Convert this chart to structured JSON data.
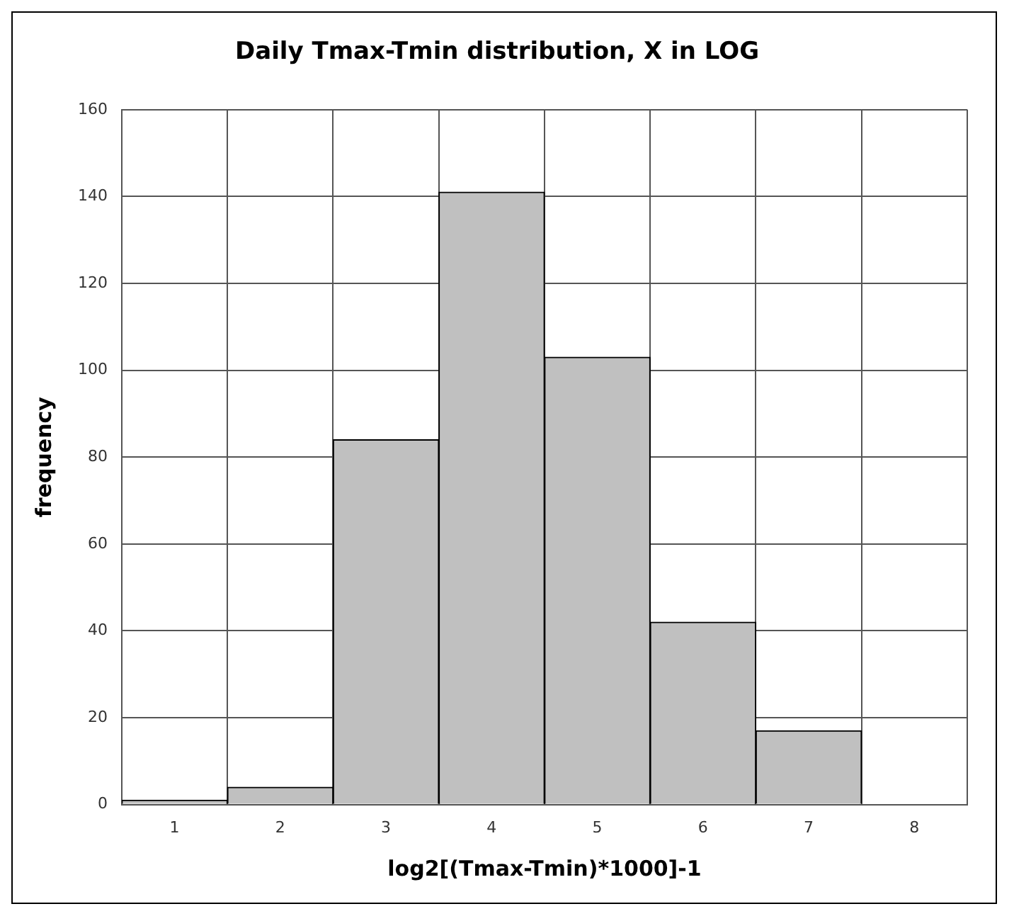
{
  "chart_data": {
    "type": "bar",
    "title": "Daily Tmax-Tmin distribution, X in LOG",
    "xlabel": "log2[(Tmax-Tmin)*1000]-1",
    "ylabel": "frequency",
    "categories": [
      "1",
      "2",
      "3",
      "4",
      "5",
      "6",
      "7",
      "8"
    ],
    "values": [
      1,
      4,
      84,
      141,
      103,
      42,
      17,
      0
    ],
    "color": "#c0c0c0",
    "ylim": [
      0,
      160
    ],
    "yticks": [
      0,
      20,
      40,
      60,
      80,
      100,
      120,
      140,
      160
    ],
    "grid": true,
    "legend": false
  }
}
